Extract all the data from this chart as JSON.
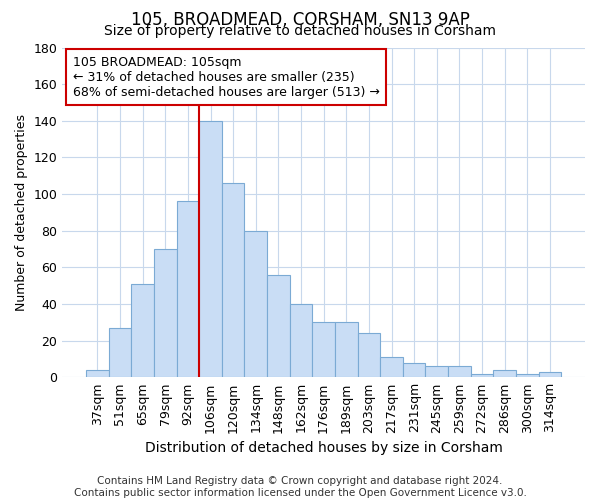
{
  "title": "105, BROADMEAD, CORSHAM, SN13 9AP",
  "subtitle": "Size of property relative to detached houses in Corsham",
  "xlabel": "Distribution of detached houses by size in Corsham",
  "ylabel": "Number of detached properties",
  "categories": [
    "37sqm",
    "51sqm",
    "65sqm",
    "79sqm",
    "92sqm",
    "106sqm",
    "120sqm",
    "134sqm",
    "148sqm",
    "162sqm",
    "176sqm",
    "189sqm",
    "203sqm",
    "217sqm",
    "231sqm",
    "245sqm",
    "259sqm",
    "272sqm",
    "286sqm",
    "300sqm",
    "314sqm"
  ],
  "values": [
    4,
    27,
    51,
    70,
    96,
    140,
    106,
    80,
    56,
    40,
    30,
    30,
    24,
    11,
    8,
    6,
    6,
    2,
    4,
    2,
    3
  ],
  "bar_color": "#c9ddf5",
  "bar_edge_color": "#7baad4",
  "vline_index": 5,
  "vline_color": "#cc0000",
  "annotation_text": "105 BROADMEAD: 105sqm\n← 31% of detached houses are smaller (235)\n68% of semi-detached houses are larger (513) →",
  "annotation_box_facecolor": "#ffffff",
  "annotation_box_edgecolor": "#cc0000",
  "ylim": [
    0,
    180
  ],
  "yticks": [
    0,
    20,
    40,
    60,
    80,
    100,
    120,
    140,
    160,
    180
  ],
  "title_fontsize": 12,
  "subtitle_fontsize": 10,
  "xlabel_fontsize": 10,
  "ylabel_fontsize": 9,
  "tick_fontsize": 9,
  "annotation_fontsize": 9,
  "footer_text": "Contains HM Land Registry data © Crown copyright and database right 2024.\nContains public sector information licensed under the Open Government Licence v3.0.",
  "footer_fontsize": 7.5,
  "figure_facecolor": "#ffffff",
  "axes_facecolor": "#ffffff",
  "grid_color": "#c8d8ec",
  "grid_linewidth": 0.8
}
